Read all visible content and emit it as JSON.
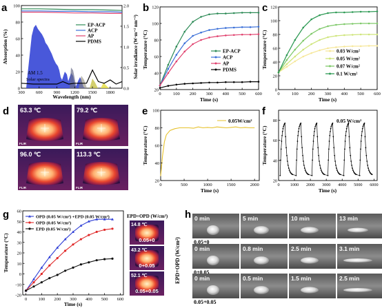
{
  "panels": {
    "a": {
      "letter": "a",
      "ylabel_left": "Absorption (%)",
      "ylabel_right": "Solar irradiance (W·m⁻² nm⁻¹)",
      "xlabel": "Wavelength (nm)",
      "xticks": [
        "300",
        "600",
        "900",
        "1200",
        "1500",
        "1800"
      ],
      "yticks_left": [
        "0",
        "20",
        "40",
        "60",
        "80",
        "100"
      ],
      "yticks_right": [
        "0.0",
        "0.5",
        "1.0",
        "1.5",
        "2.0"
      ],
      "legend": [
        "EP-ACP",
        "ACP",
        "AP",
        "PDMS"
      ],
      "annot1": "AM 1.5",
      "annot2": "Solar spectra",
      "colors": [
        "#2e8b57",
        "#3a6fd8",
        "#e0416e",
        "#000000"
      ]
    },
    "b": {
      "letter": "b",
      "ylabel": "Temperature (°C)",
      "xlabel": "Time (s)",
      "xticks": [
        "0",
        "100",
        "200",
        "300",
        "400",
        "500",
        "600"
      ],
      "yticks": [
        "20",
        "40",
        "60",
        "80",
        "100",
        "120"
      ],
      "legend": [
        "EP-ACP",
        "ACP",
        "AP",
        "PDMS"
      ]
    },
    "c": {
      "letter": "c",
      "ylabel": "Temperature (°C)",
      "xlabel": "Time (s)",
      "xticks": [
        "0",
        "100",
        "200",
        "300",
        "400",
        "500",
        "600"
      ],
      "yticks": [
        "0",
        "20",
        "40",
        "60",
        "80",
        "100",
        "120"
      ],
      "legend": [
        "0.03 W/cm²",
        "0.05 W/cm²",
        "0.07 W/cm²",
        "0.1 W/cm²"
      ]
    },
    "d": {
      "letter": "d",
      "temps": [
        "63.3 ℃",
        "79.2 ℃",
        "96.0 ℃",
        "113.3 ℃"
      ],
      "brand": "FLIR"
    },
    "e": {
      "letter": "e",
      "ylabel": "Temperature (°C)",
      "xlabel": "Time (s)",
      "xticks": [
        "0",
        "500",
        "1000",
        "1500",
        "2000"
      ],
      "yticks": [
        "20",
        "40",
        "60",
        "80",
        "100"
      ],
      "legend": "0.05W/cm²"
    },
    "f": {
      "letter": "f",
      "ylabel": "Temperature (°C)",
      "xlabel": "Time (s)",
      "xticks": [
        "0",
        "1000",
        "2000",
        "3000",
        "4000",
        "5000",
        "6000"
      ],
      "yticks": [
        "20",
        "40",
        "60",
        "80"
      ],
      "legend": "0.05 W/cm²"
    },
    "g": {
      "letter": "g",
      "ylabel": "Temperature (°C)",
      "xlabel": "Time (s)",
      "xticks": [
        "0",
        "100",
        "200",
        "300",
        "400",
        "500",
        "600"
      ],
      "yticks": [
        "-20",
        "-10",
        "0",
        "10",
        "20",
        "30",
        "40",
        "50",
        "60"
      ],
      "legend": [
        "OPD (0.05 W/cm²) +EPD (0.05 W/cm²)",
        "OPD (0.05 W/cm²)",
        "EPD (0.05 W/cm²)"
      ],
      "thermo_title": "EPD+OPD (W/cm²)",
      "thermo_temps": [
        "14.8 ℃",
        "43.2 ℃",
        "52.1 ℃"
      ],
      "thermo_labels": [
        "0.05+0",
        "0+0.05",
        "0.05+0.05"
      ]
    },
    "h": {
      "letter": "h",
      "ylabel": "EPD+OPD (W/cm²)",
      "rows": [
        {
          "label": "0.05+0",
          "times": [
            "0 min",
            "5 min",
            "10 min",
            "13 min"
          ]
        },
        {
          "label": "0+0.05",
          "times": [
            "0 min",
            "0.8 min",
            "2.5 min",
            "3.1 min"
          ]
        },
        {
          "label": "0.05+0.05",
          "times": [
            "0 min",
            "0.5 min",
            "1.5 min",
            "2.5 min"
          ]
        }
      ]
    }
  },
  "chart_data": [
    {
      "type": "line",
      "panel": "a",
      "xlim": [
        300,
        2000
      ],
      "ylim": [
        0,
        100
      ],
      "y2lim": [
        0,
        2.0
      ],
      "series": [
        {
          "name": "EP-ACP",
          "x": [
            300,
            600,
            900,
            1200,
            1500,
            1800,
            2000
          ],
          "y": [
            96,
            96,
            95.5,
            95,
            95,
            94.5,
            94
          ]
        },
        {
          "name": "ACP",
          "x": [
            300,
            600,
            900,
            1200,
            1500,
            1800,
            2000
          ],
          "y": [
            93.5,
            93.5,
            93,
            93,
            92.5,
            92.5,
            92
          ]
        },
        {
          "name": "AP",
          "x": [
            300,
            600,
            900,
            1200,
            1500,
            1800,
            2000
          ],
          "y": [
            92,
            92,
            91.5,
            91,
            91,
            90.5,
            90.5
          ]
        },
        {
          "name": "PDMS",
          "x": [
            300,
            500,
            700,
            900,
            1000,
            1100,
            1200,
            1300,
            1400,
            1500,
            1600,
            1700,
            1800,
            1900,
            2000
          ],
          "y": [
            6,
            5,
            5,
            5,
            8,
            5,
            6,
            6,
            6,
            22,
            8,
            6,
            10,
            5,
            8
          ]
        }
      ]
    },
    {
      "type": "line",
      "panel": "b",
      "xlim": [
        0,
        600
      ],
      "ylim": [
        20,
        120
      ],
      "x": [
        0,
        50,
        100,
        150,
        200,
        250,
        300,
        350,
        400,
        450,
        500,
        550,
        600
      ],
      "series": [
        {
          "name": "EP-ACP",
          "values": [
            25,
            50,
            72,
            90,
            102,
            108,
            111,
            112,
            112,
            112.5,
            113,
            113,
            113
          ]
        },
        {
          "name": "ACP",
          "values": [
            25,
            45,
            62,
            76,
            85,
            89,
            92,
            93.5,
            94.5,
            95,
            95.5,
            95.5,
            96
          ]
        },
        {
          "name": "AP",
          "values": [
            25,
            40,
            54,
            66,
            75,
            80,
            83,
            84.5,
            85.5,
            86,
            86.5,
            86.5,
            87
          ]
        },
        {
          "name": "PDMS",
          "values": [
            22,
            24.5,
            26,
            27,
            27.5,
            28,
            28.5,
            28.5,
            29,
            29,
            29,
            29.5,
            29.5
          ]
        }
      ]
    },
    {
      "type": "line",
      "panel": "c",
      "xlim": [
        0,
        600
      ],
      "ylim": [
        0,
        120
      ],
      "x": [
        0,
        50,
        100,
        150,
        200,
        250,
        300,
        350,
        400,
        450,
        500,
        550,
        600
      ],
      "series": [
        {
          "name": "0.03 W/cm²",
          "values": [
            25,
            33,
            41,
            48,
            53,
            57,
            60,
            61.5,
            62.5,
            63,
            63,
            63.5,
            63.5
          ]
        },
        {
          "name": "0.05 W/cm²",
          "values": [
            25,
            37,
            48,
            58,
            66,
            72,
            76,
            78,
            79,
            79.5,
            80,
            80,
            80
          ]
        },
        {
          "name": "0.07 W/cm²",
          "values": [
            25,
            43,
            58,
            71,
            81,
            88,
            92,
            94,
            95,
            95.5,
            96,
            96,
            96
          ]
        },
        {
          "name": "0.1 W/cm²",
          "values": [
            25,
            50,
            72,
            90,
            102,
            108,
            111,
            112,
            112,
            112.5,
            113,
            113,
            113.5
          ]
        }
      ]
    },
    {
      "type": "line",
      "panel": "e",
      "xlim": [
        0,
        2100
      ],
      "ylim": [
        20,
        100
      ],
      "series": [
        {
          "name": "0.05W/cm²",
          "x": [
            0,
            40,
            80,
            120,
            200,
            300,
            400,
            500,
            600,
            700,
            800,
            900,
            1000,
            1100,
            1200,
            1300,
            1400,
            1500,
            1600,
            1700,
            1800,
            1900,
            2000
          ],
          "y": [
            25,
            48,
            64,
            72,
            77,
            79,
            80,
            80,
            80,
            79.5,
            81,
            80,
            80.5,
            80,
            81,
            80.5,
            80,
            80.5,
            81,
            80,
            80.5,
            80,
            80
          ]
        }
      ]
    },
    {
      "type": "line",
      "panel": "f",
      "xlim": [
        0,
        6200
      ],
      "ylim": [
        20,
        90
      ],
      "cycles": 6,
      "cycle_s": 1000,
      "low": 25,
      "high": 79
    },
    {
      "type": "line",
      "panel": "g",
      "xlim": [
        0,
        600
      ],
      "ylim": [
        -20,
        60
      ],
      "x": [
        0,
        50,
        100,
        150,
        200,
        250,
        300,
        350,
        400,
        450,
        500,
        550
      ],
      "series": [
        {
          "name": "OPD (0.05 W/cm²) +EPD (0.05 W/cm²)",
          "values": [
            -16,
            -5,
            6,
            16,
            25,
            33,
            40,
            46,
            50,
            52,
            52,
            52
          ]
        },
        {
          "name": "OPD (0.05 W/cm²)",
          "values": [
            -16,
            -8,
            0,
            8,
            15,
            22,
            28,
            33,
            37,
            40,
            42,
            43
          ]
        },
        {
          "name": "EPD (0.05 W/cm²)",
          "values": [
            -16,
            -12,
            -8,
            -4,
            -1,
            3,
            6,
            9,
            11,
            13,
            14,
            14.5
          ]
        }
      ]
    }
  ]
}
